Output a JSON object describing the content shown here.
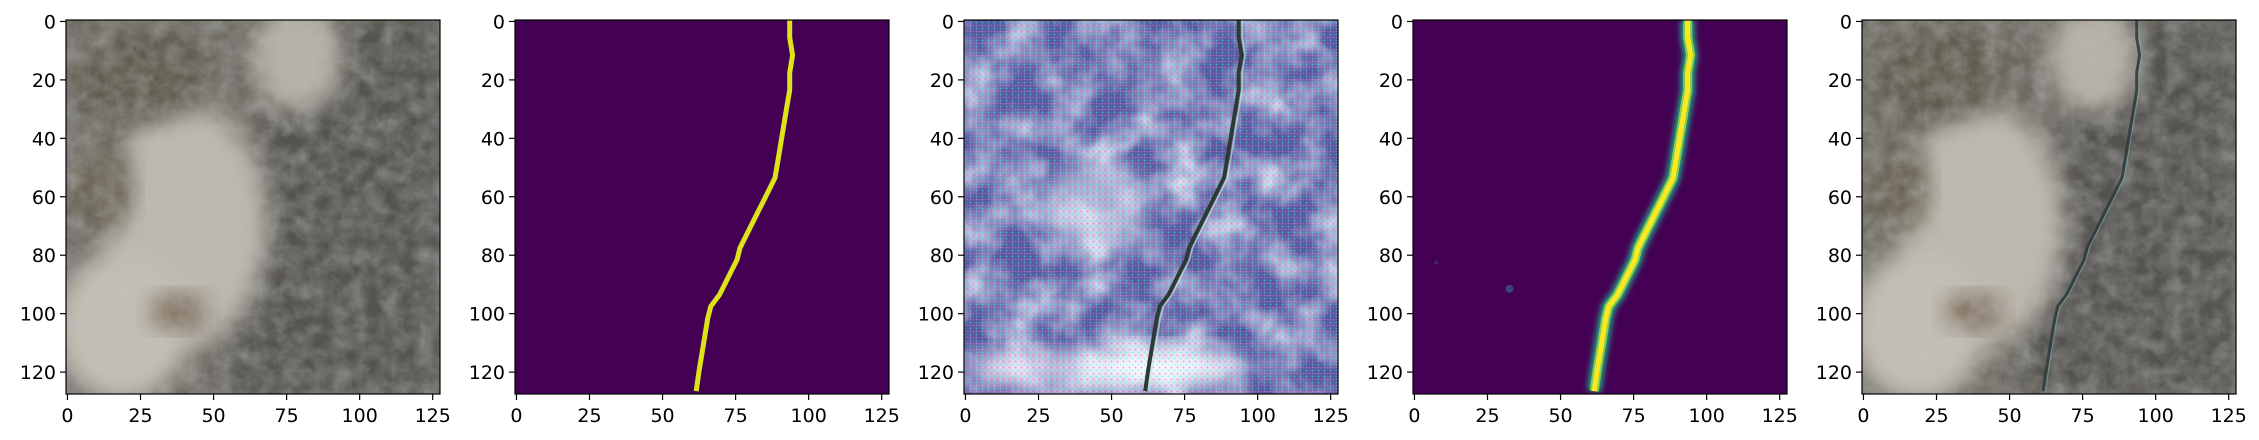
{
  "figure": {
    "panel_count": 5,
    "axes": {
      "x_ticks": [
        "0",
        "25",
        "50",
        "75",
        "100",
        "125"
      ],
      "y_ticks": [
        "0",
        "20",
        "40",
        "60",
        "80",
        "100",
        "120"
      ]
    },
    "panels": [
      {
        "content": "rock-surface-photo"
      },
      {
        "content": "binary-crack-mask",
        "colors": {
          "background": "#440154",
          "mask": "#dde318"
        }
      },
      {
        "content": "generated-noisy-texture"
      },
      {
        "content": "predicted-crack-heatmap",
        "colors": {
          "background": "#440154",
          "edge": "#21a585",
          "core": "#fde725"
        }
      },
      {
        "content": "crack-overlay-photo"
      }
    ]
  }
}
